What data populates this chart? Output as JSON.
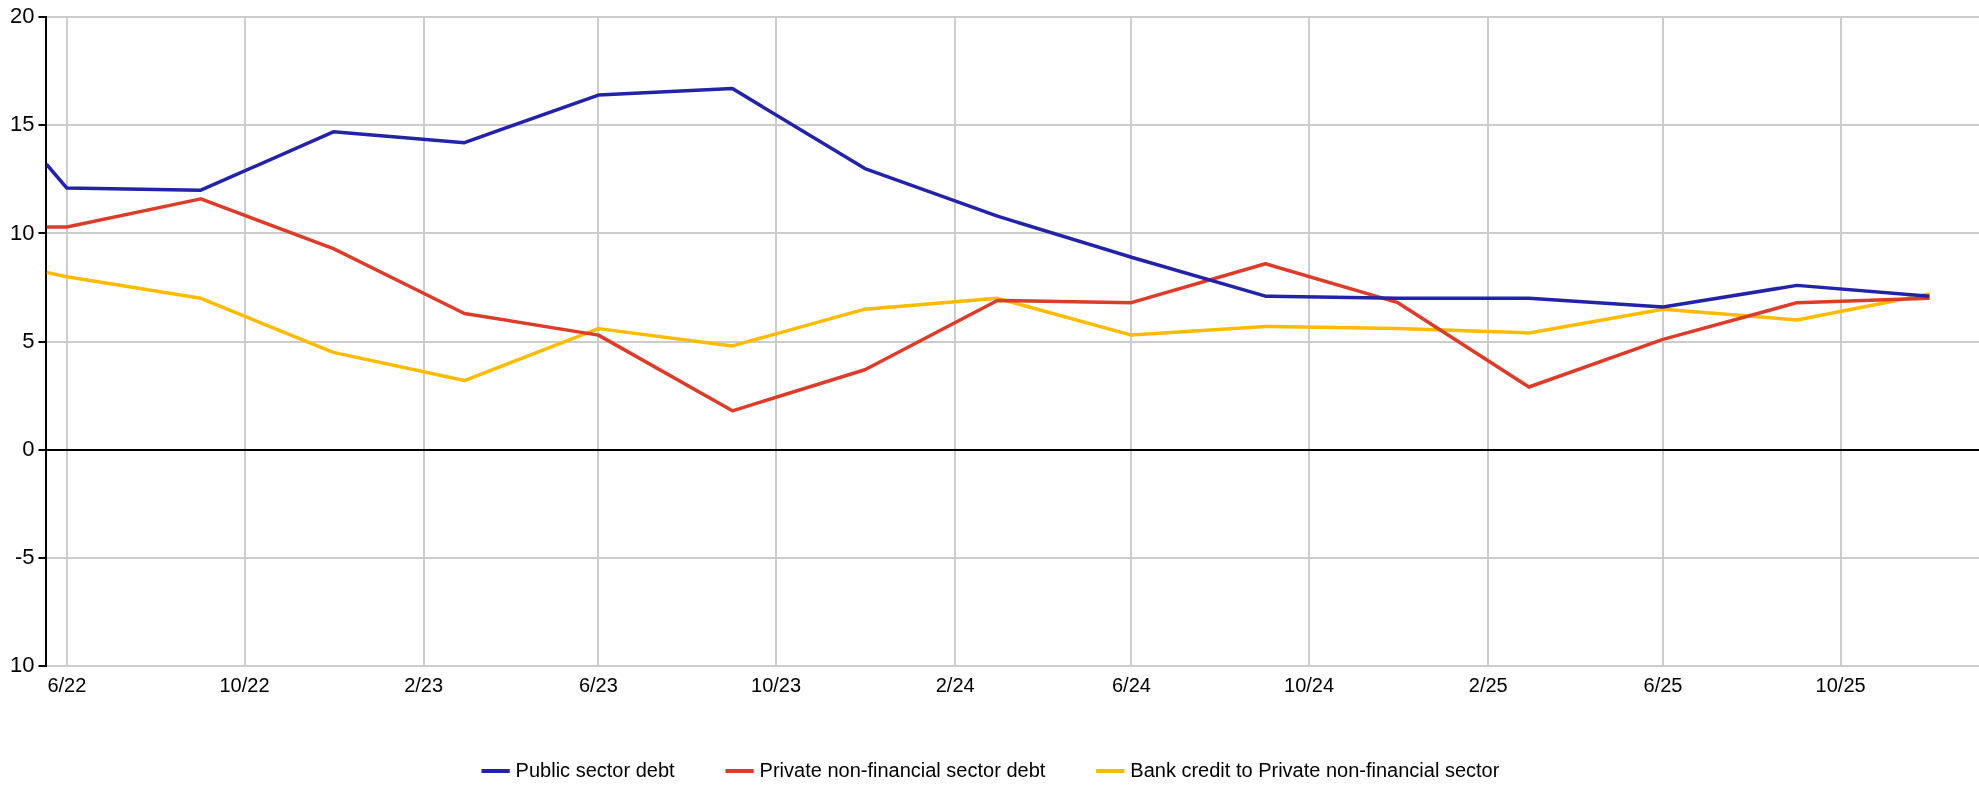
{
  "chart_data": {
    "type": "line",
    "x": [
      "2022-06-01",
      "2022-06-15",
      "2022-09-15",
      "2022-12-15",
      "2023-03-15",
      "2023-06-15",
      "2023-09-15",
      "2023-12-15",
      "2024-03-15",
      "2024-06-15",
      "2024-09-15",
      "2024-12-15",
      "2025-03-15",
      "2025-06-15",
      "2025-09-15",
      "2025-12-15"
    ],
    "series": [
      {
        "name": "Public sector debt",
        "color": "#2323a8",
        "values": [
          13.2,
          12.1,
          12.0,
          14.7,
          14.2,
          16.4,
          16.7,
          13.0,
          10.8,
          8.9,
          7.1,
          7.0,
          7.0,
          6.6,
          7.6,
          7.1
        ]
      },
      {
        "name": "Private non-financial sector debt",
        "color": "#dc3c2a",
        "values": [
          10.3,
          10.3,
          11.6,
          9.3,
          6.3,
          5.3,
          1.8,
          3.7,
          6.9,
          6.8,
          8.6,
          6.8,
          2.9,
          5.1,
          6.8,
          7.0
        ]
      },
      {
        "name": "Bank credit to Private non-financial sector",
        "color": "#ffbb00",
        "values": [
          8.2,
          8.0,
          7.0,
          4.5,
          3.2,
          5.6,
          4.8,
          6.5,
          7.0,
          5.3,
          5.7,
          5.6,
          5.4,
          6.5,
          6.0,
          7.2
        ]
      }
    ],
    "xlim": [
      "2022-06-01",
      "2026-01-18"
    ],
    "xticks": [
      {
        "value": "2022-06-15",
        "label": "6/22"
      },
      {
        "value": "2022-10-15",
        "label": "10/22"
      },
      {
        "value": "2023-02-15",
        "label": "2/23"
      },
      {
        "value": "2023-06-15",
        "label": "6/23"
      },
      {
        "value": "2023-10-15",
        "label": "10/23"
      },
      {
        "value": "2024-02-15",
        "label": "2/24"
      },
      {
        "value": "2024-06-15",
        "label": "6/24"
      },
      {
        "value": "2024-10-15",
        "label": "10/24"
      },
      {
        "value": "2025-02-15",
        "label": "2/25"
      },
      {
        "value": "2025-06-15",
        "label": "6/25"
      },
      {
        "value": "2025-10-15",
        "label": "10/25"
      }
    ],
    "ylim": [
      -10,
      20
    ],
    "yticks": [
      {
        "value": -10,
        "label": "10"
      },
      -5,
      0,
      5,
      10,
      15,
      20
    ],
    "grid": true,
    "legend": "bottom",
    "marker": "none",
    "line_style": "solid"
  }
}
